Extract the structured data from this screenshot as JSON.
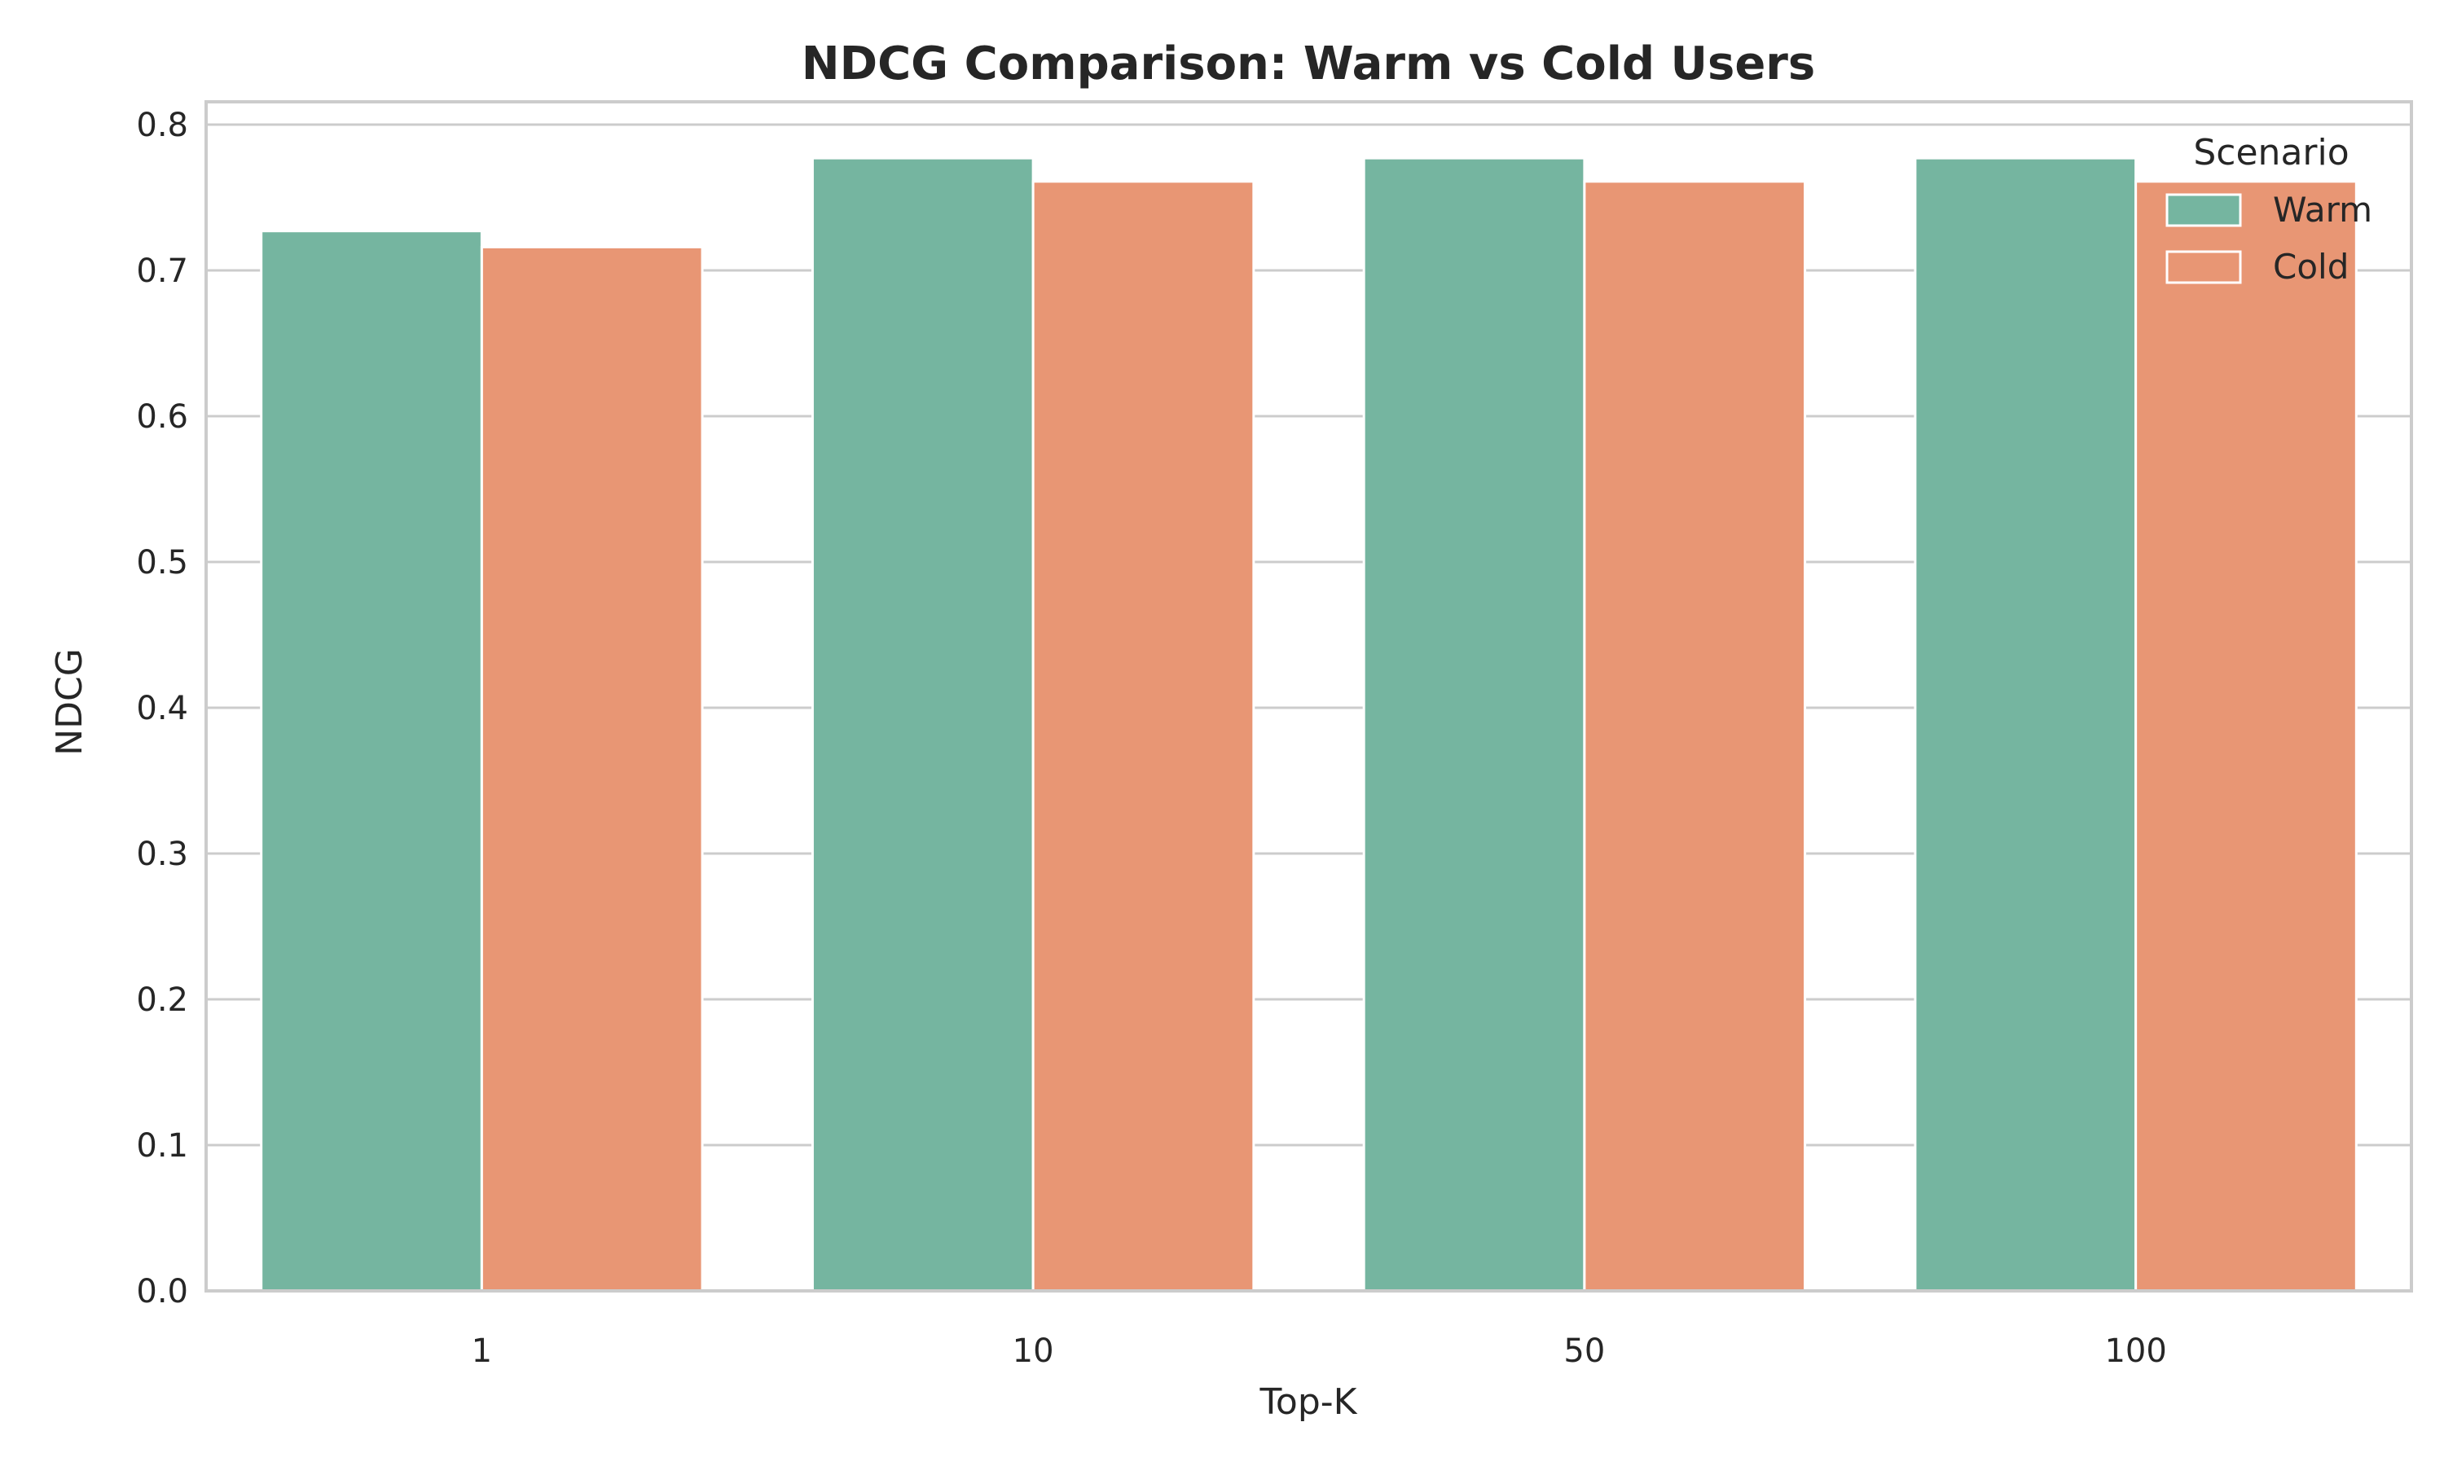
{
  "chart_data": {
    "type": "bar",
    "title": "NDCG Comparison: Warm vs Cold Users",
    "xlabel": "Top-K",
    "ylabel": "NDCG",
    "categories": [
      "1",
      "10",
      "50",
      "100"
    ],
    "series": [
      {
        "name": "Warm",
        "color": "#75b5a0",
        "values": [
          0.727,
          0.777,
          0.777,
          0.777
        ]
      },
      {
        "name": "Cold",
        "color": "#e89674",
        "values": [
          0.716,
          0.761,
          0.761,
          0.761
        ]
      }
    ],
    "ylim": [
      0,
      0.8
    ],
    "yticks": [
      "0.0",
      "0.1",
      "0.2",
      "0.3",
      "0.4",
      "0.5",
      "0.6",
      "0.7",
      "0.8"
    ],
    "grid": "horizontal",
    "legend": {
      "title": "Scenario",
      "placement": "top-right"
    }
  }
}
